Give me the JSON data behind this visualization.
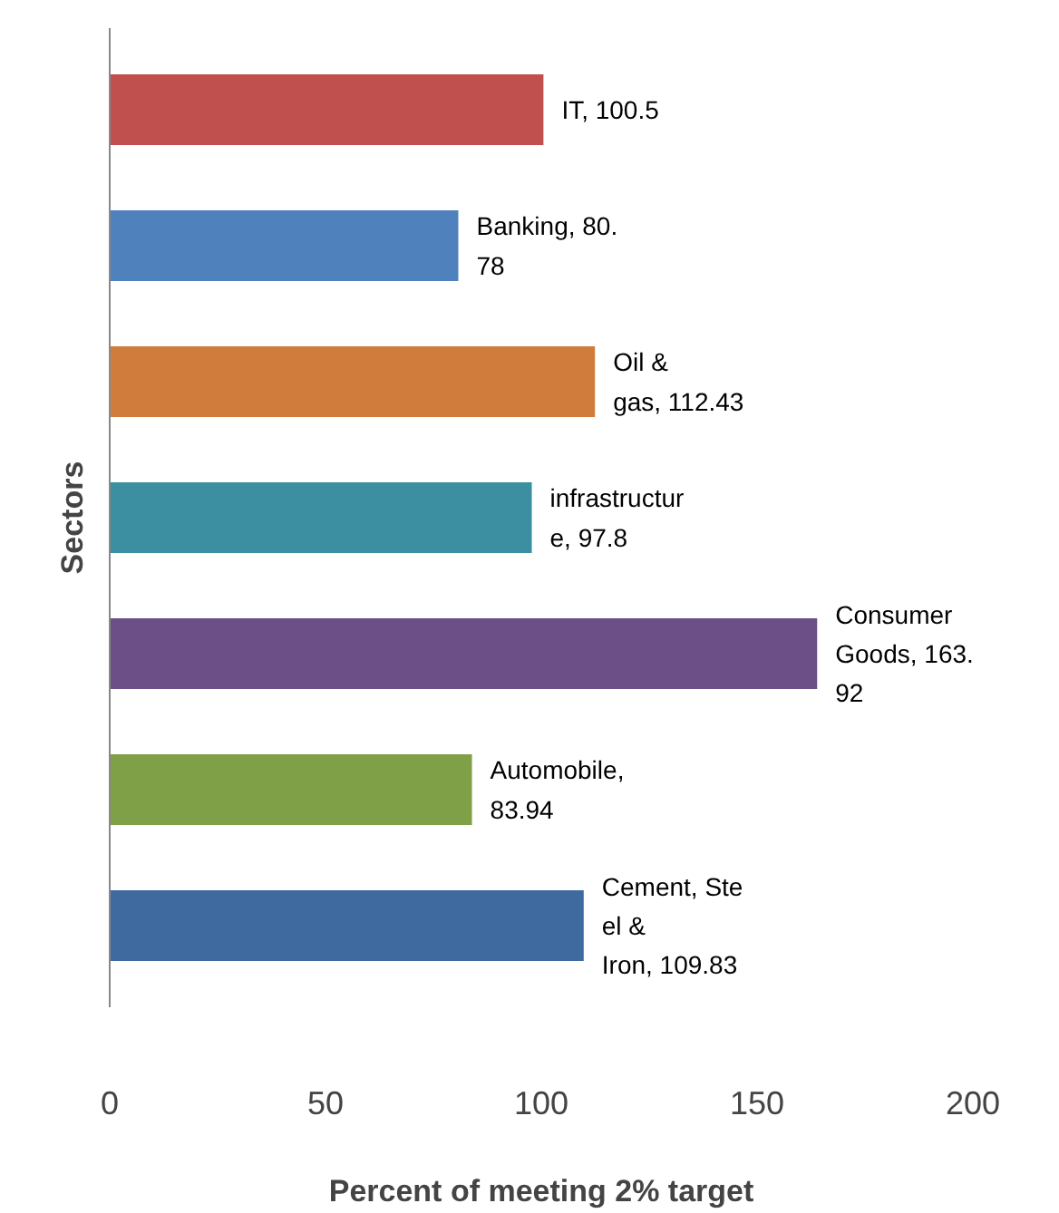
{
  "chart_data": {
    "type": "bar",
    "orientation": "horizontal",
    "xlabel": "Percent of meeting 2% target",
    "ylabel": "Sectors",
    "categories": [
      null,
      null,
      null,
      null,
      null,
      null,
      null
    ],
    "values": [
      100.5,
      80.78,
      112.43,
      97.8,
      163.92,
      83.94,
      109.83
    ],
    "colors": [
      "#c0504d",
      "#4f81bd",
      "#d07c3c",
      "#3b8fa0",
      "#6b4f86",
      "#80a048",
      "#3f6aa0"
    ],
    "value_labels": [
      "IT, 100.5",
      "Banking, 80.\n78",
      "Oil &\ngas, 112.43",
      "infrastructur\ne, 97.8",
      "Consumer\nGoods, 163.\n92",
      "Automobile,\n83.94",
      "Cement, Ste\nel &\nIron, 109.83"
    ],
    "xlim": [
      0,
      200
    ],
    "xticks": [
      0,
      50,
      100,
      150,
      200
    ],
    "grid": false
  }
}
